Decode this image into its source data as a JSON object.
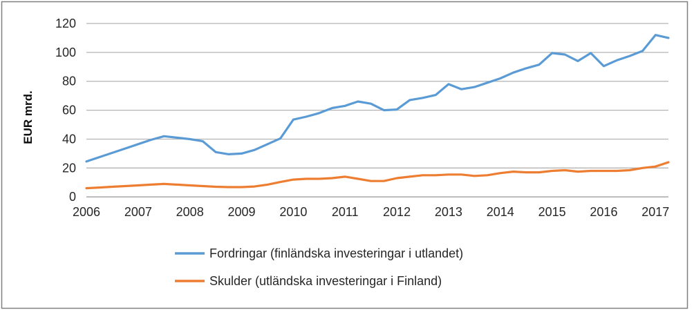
{
  "chart_data": {
    "type": "line",
    "title": "",
    "ylabel": "EUR mrd.",
    "xlabel": "",
    "ylim": [
      0,
      120
    ],
    "y_ticks": [
      0,
      20,
      40,
      60,
      80,
      100,
      120
    ],
    "x_tick_labels": [
      "2006",
      "2007",
      "2008",
      "2009",
      "2010",
      "2011",
      "2012",
      "2013",
      "2014",
      "2015",
      "2016",
      "2017"
    ],
    "grid": "horizontal",
    "legend_position": "bottom",
    "categories": [
      "2006Q1",
      "2006Q2",
      "2006Q3",
      "2006Q4",
      "2007Q1",
      "2007Q2",
      "2007Q3",
      "2007Q4",
      "2008Q1",
      "2008Q2",
      "2008Q3",
      "2008Q4",
      "2009Q1",
      "2009Q2",
      "2009Q3",
      "2009Q4",
      "2010Q1",
      "2010Q2",
      "2010Q3",
      "2010Q4",
      "2011Q1",
      "2011Q2",
      "2011Q3",
      "2011Q4",
      "2012Q1",
      "2012Q2",
      "2012Q3",
      "2012Q4",
      "2013Q1",
      "2013Q2",
      "2013Q3",
      "2013Q4",
      "2014Q1",
      "2014Q2",
      "2014Q3",
      "2014Q4",
      "2015Q1",
      "2015Q2",
      "2015Q3",
      "2015Q4",
      "2016Q1",
      "2016Q2",
      "2016Q3",
      "2016Q4",
      "2017Q1",
      "2017Q2"
    ],
    "series": [
      {
        "name": "Fordringar (finländska investeringar i utlandet)",
        "color": "#5B9BD5",
        "values": [
          24.5,
          27.5,
          30.5,
          33.5,
          36.5,
          39.5,
          42,
          41,
          40,
          38.5,
          31,
          29.5,
          30,
          32.5,
          36.5,
          40.5,
          53.5,
          55.5,
          58,
          61.5,
          63,
          66,
          64.5,
          60,
          60.5,
          67,
          68.5,
          70.5,
          78,
          74.5,
          76,
          79,
          82,
          86,
          89,
          91.5,
          99.5,
          98.5,
          94,
          99.5,
          90.5,
          94.5,
          97.5,
          101,
          112,
          110
        ]
      },
      {
        "name": "Skulder (utländska investeringar i Finland)",
        "color": "#ED7D31",
        "values": [
          6,
          6.5,
          7,
          7.5,
          8,
          8.5,
          9,
          8.5,
          8,
          7.5,
          7,
          6.8,
          6.8,
          7.2,
          8.5,
          10.3,
          12,
          12.5,
          12.5,
          13,
          14,
          12.5,
          11,
          11,
          13,
          14,
          15,
          15,
          15.5,
          15.5,
          14.5,
          15,
          16.5,
          17.5,
          17,
          17,
          18,
          18.5,
          17.5,
          18,
          18,
          18,
          18.5,
          20,
          21,
          24
        ]
      }
    ],
    "style": {
      "grid_color": "#b3b3b3",
      "axis_line_color": "#9e9e9e",
      "frame_color": "#7f7f7f",
      "text_color": "#262626",
      "line_width": 3.2
    }
  }
}
